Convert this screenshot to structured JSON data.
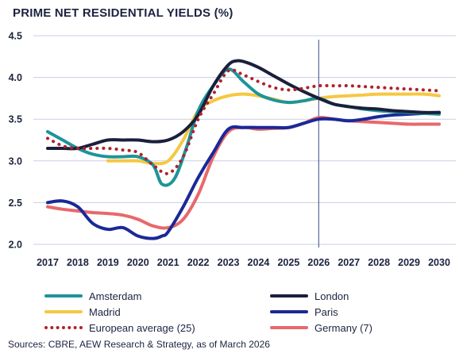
{
  "chart_data": {
    "type": "line",
    "title": "PRIME NET RESIDENTIAL YIELDS (%)",
    "xlabel": "",
    "ylabel": "",
    "x": [
      2017,
      2018,
      2019,
      2020,
      2021,
      2022,
      2023,
      2024,
      2025,
      2026,
      2027,
      2028,
      2029,
      2030
    ],
    "xlim": [
      2017,
      2030
    ],
    "ylim": [
      2.0,
      4.5
    ],
    "y_ticks": [
      "2.0",
      "2.5",
      "3.0",
      "3.5",
      "4.0",
      "4.5"
    ],
    "grid": true,
    "reference_line_x": 2026,
    "legend_position": "bottom",
    "series": [
      {
        "name": "Amsterdam",
        "color": "#1d949a",
        "style": "solid",
        "x": [
          2017,
          2017.5,
          2018,
          2018.5,
          2019,
          2019.5,
          2020,
          2020.5,
          2020.8,
          2021.2,
          2021.6,
          2022,
          2022.5,
          2023,
          2023.5,
          2024,
          2024.5,
          2025,
          2025.5,
          2026,
          2026.5,
          2027,
          2027.5,
          2028,
          2028.5,
          2029,
          2029.5,
          2030
        ],
        "values": [
          3.35,
          3.25,
          3.15,
          3.08,
          3.05,
          3.05,
          3.05,
          2.95,
          2.72,
          2.78,
          3.15,
          3.6,
          3.9,
          4.1,
          3.95,
          3.8,
          3.73,
          3.7,
          3.72,
          3.75,
          3.68,
          3.65,
          3.62,
          3.6,
          3.59,
          3.58,
          3.57,
          3.56
        ]
      },
      {
        "name": "London",
        "color": "#1a1f3c",
        "style": "solid",
        "x": [
          2017,
          2017.5,
          2018,
          2018.5,
          2019,
          2019.5,
          2020,
          2020.5,
          2021,
          2021.5,
          2022,
          2022.5,
          2023,
          2023.3,
          2023.6,
          2024,
          2024.5,
          2025,
          2025.5,
          2026,
          2026.5,
          2027,
          2027.5,
          2028,
          2028.5,
          2029,
          2029.5,
          2030
        ],
        "values": [
          3.15,
          3.15,
          3.15,
          3.2,
          3.25,
          3.25,
          3.25,
          3.23,
          3.25,
          3.35,
          3.55,
          3.9,
          4.15,
          4.2,
          4.18,
          4.12,
          4.02,
          3.92,
          3.83,
          3.75,
          3.68,
          3.65,
          3.63,
          3.62,
          3.6,
          3.59,
          3.58,
          3.58
        ]
      },
      {
        "name": "Madrid",
        "color": "#f5c842",
        "style": "solid",
        "x": [
          2019,
          2019.5,
          2020,
          2020.5,
          2021,
          2021.5,
          2022,
          2022.5,
          2023,
          2023.5,
          2024,
          2024.5,
          2025,
          2025.5,
          2026,
          2026.5,
          2027,
          2027.5,
          2028,
          2028.5,
          2029,
          2029.5,
          2030
        ],
        "values": [
          3.0,
          3.0,
          3.0,
          2.97,
          3.0,
          3.25,
          3.6,
          3.72,
          3.78,
          3.8,
          3.78,
          3.74,
          3.7,
          3.72,
          3.75,
          3.77,
          3.78,
          3.79,
          3.8,
          3.8,
          3.8,
          3.8,
          3.78
        ]
      },
      {
        "name": "Paris",
        "color": "#1a2996",
        "style": "solid",
        "x": [
          2017,
          2017.5,
          2018,
          2018.5,
          2019,
          2019.5,
          2020,
          2020.5,
          2020.8,
          2021,
          2021.5,
          2022,
          2022.5,
          2023,
          2023.5,
          2024,
          2024.5,
          2025,
          2025.5,
          2026,
          2026.5,
          2027,
          2027.5,
          2028,
          2028.5,
          2029,
          2029.5,
          2030
        ],
        "values": [
          2.5,
          2.52,
          2.45,
          2.25,
          2.18,
          2.2,
          2.1,
          2.07,
          2.1,
          2.15,
          2.45,
          2.8,
          3.1,
          3.38,
          3.4,
          3.4,
          3.4,
          3.4,
          3.45,
          3.5,
          3.5,
          3.48,
          3.5,
          3.53,
          3.55,
          3.56,
          3.57,
          3.58
        ]
      },
      {
        "name": "European average (25)",
        "color": "#b0202c",
        "style": "dotted",
        "x": [
          2017,
          2017.5,
          2018,
          2018.5,
          2019,
          2019.5,
          2020,
          2020.5,
          2021,
          2021.5,
          2022,
          2022.5,
          2023,
          2023.5,
          2024,
          2024.5,
          2025,
          2025.5,
          2026,
          2026.5,
          2027,
          2027.5,
          2028,
          2028.5,
          2029,
          2029.5,
          2030
        ],
        "values": [
          3.27,
          3.18,
          3.15,
          3.15,
          3.15,
          3.13,
          3.1,
          2.95,
          2.85,
          3.05,
          3.5,
          3.8,
          4.08,
          4.03,
          3.95,
          3.88,
          3.85,
          3.87,
          3.9,
          3.9,
          3.9,
          3.89,
          3.88,
          3.87,
          3.86,
          3.85,
          3.84
        ]
      },
      {
        "name": "Germany (7)",
        "color": "#e8686b",
        "style": "solid",
        "x": [
          2017,
          2017.5,
          2018,
          2018.5,
          2019,
          2019.5,
          2020,
          2020.5,
          2021,
          2021.5,
          2022,
          2022.5,
          2023,
          2023.5,
          2024,
          2024.5,
          2025,
          2025.5,
          2026,
          2026.5,
          2027,
          2027.5,
          2028,
          2028.5,
          2029,
          2029.5,
          2030
        ],
        "values": [
          2.45,
          2.42,
          2.4,
          2.38,
          2.37,
          2.35,
          2.3,
          2.22,
          2.2,
          2.3,
          2.6,
          3.05,
          3.35,
          3.4,
          3.38,
          3.39,
          3.4,
          3.45,
          3.52,
          3.5,
          3.48,
          3.47,
          3.46,
          3.45,
          3.44,
          3.44,
          3.44
        ]
      }
    ],
    "legend_order": [
      "Amsterdam",
      "London",
      "Madrid",
      "Paris",
      "European average (25)",
      "Germany (7)"
    ],
    "source": "Sources: CBRE, AEW Research & Strategy, as of March 2026"
  }
}
